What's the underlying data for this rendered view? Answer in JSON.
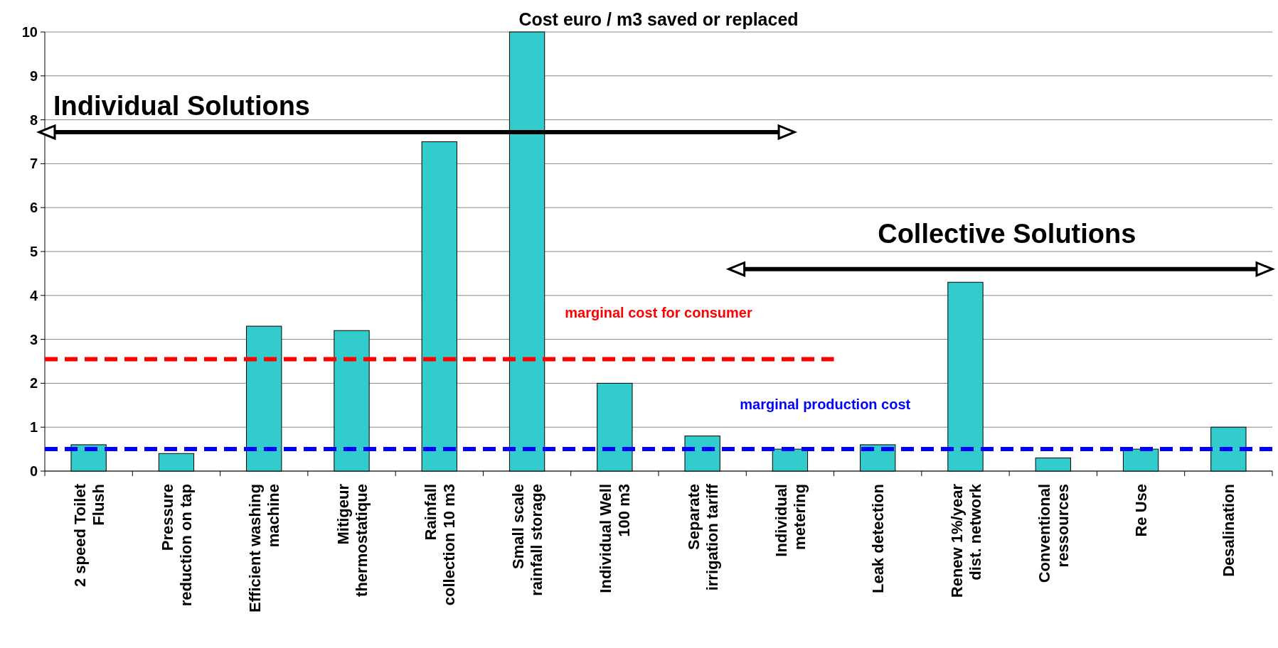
{
  "chart_data": {
    "type": "bar",
    "title": "Cost euro / m3 saved or replaced",
    "categories": [
      "2 speed Toilet Flush",
      "Pressure reduction on tap",
      "Efficient washing machine",
      "Mitigeur thermostatique",
      "Rainfall collection 10 m3",
      "Small scale rainfall storage",
      "Individual Well 100 m3",
      "Separate irrigation tariff",
      "Individual metering",
      "Leak detection",
      "Renew 1%/year dist. network",
      "Conventional ressources",
      "Re Use",
      "Desalination"
    ],
    "values": [
      0.6,
      0.4,
      3.3,
      3.2,
      7.5,
      10,
      2,
      0.8,
      0.5,
      0.6,
      4.3,
      0.3,
      0.5,
      1
    ],
    "color": "#33cccc",
    "ylim": [
      0,
      10
    ],
    "yticks": [
      0,
      1,
      2,
      3,
      4,
      5,
      6,
      7,
      8,
      9,
      10
    ],
    "grid": "y",
    "ref_lines": [
      {
        "axis": "y",
        "value": 2.55,
        "label": "marginal cost for consumer",
        "color": "#ff0000",
        "line_style": "dashed"
      },
      {
        "axis": "y",
        "value": 0.5,
        "label": "marginal production cost",
        "color": "#0000ff",
        "line_style": "dashed"
      }
    ],
    "annotations": [
      "Individual Solutions",
      "Collective Solutions"
    ]
  }
}
